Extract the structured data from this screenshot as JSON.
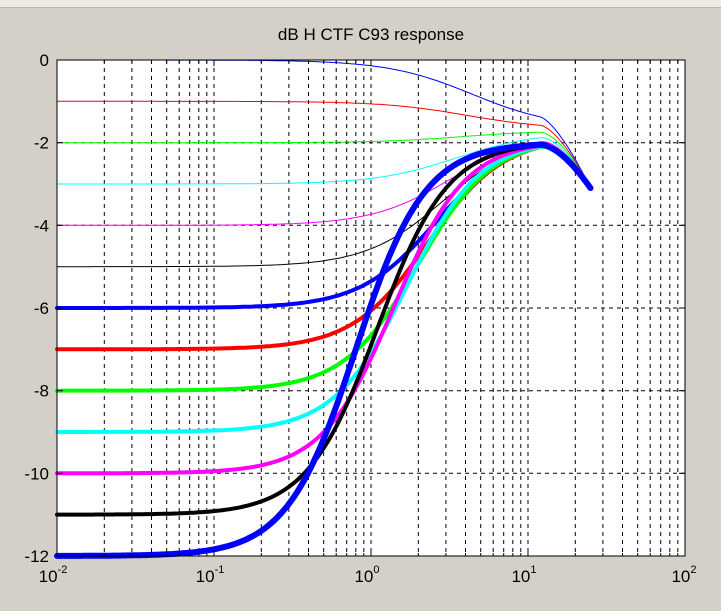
{
  "chart_data": {
    "type": "line",
    "title": "dB H CTF C93 response",
    "xlabel": "",
    "ylabel": "",
    "x_scale": "log",
    "xlim": [
      0.01,
      100
    ],
    "ylim": [
      -12,
      0
    ],
    "grid": true,
    "x_ticks": [
      {
        "base": "10",
        "exp": "-2"
      },
      {
        "base": "10",
        "exp": "-1"
      },
      {
        "base": "10",
        "exp": "0"
      },
      {
        "base": "10",
        "exp": "1"
      },
      {
        "base": "10",
        "exp": "2"
      }
    ],
    "y_ticks": [
      "0",
      "-2",
      "-4",
      "-6",
      "-8",
      "-10",
      "-12"
    ],
    "x_range_of_curves": [
      0.01,
      25
    ],
    "peak_freq": 12,
    "end_value_db": -3.1,
    "series": [
      {
        "dc_gain_db": 0,
        "color": "#0000ff",
        "line_width": 1
      },
      {
        "dc_gain_db": -1,
        "color": "#ff0000",
        "line_width": 1
      },
      {
        "dc_gain_db": -2,
        "color": "#00ff00",
        "line_width": 1
      },
      {
        "dc_gain_db": -3,
        "color": "#00ffff",
        "line_width": 1
      },
      {
        "dc_gain_db": -4,
        "color": "#ff00ff",
        "line_width": 1
      },
      {
        "dc_gain_db": -5,
        "color": "#000000",
        "line_width": 1
      },
      {
        "dc_gain_db": -6,
        "color": "#0000ff",
        "line_width": 4
      },
      {
        "dc_gain_db": -7,
        "color": "#ff0000",
        "line_width": 4
      },
      {
        "dc_gain_db": -8,
        "color": "#00ff00",
        "line_width": 4
      },
      {
        "dc_gain_db": -9,
        "color": "#00ffff",
        "line_width": 4
      },
      {
        "dc_gain_db": -10,
        "color": "#ff00ff",
        "line_width": 4
      },
      {
        "dc_gain_db": -11,
        "color": "#000000",
        "line_width": 4
      },
      {
        "dc_gain_db": -12,
        "color": "#0000ff",
        "line_width": 6
      }
    ]
  }
}
